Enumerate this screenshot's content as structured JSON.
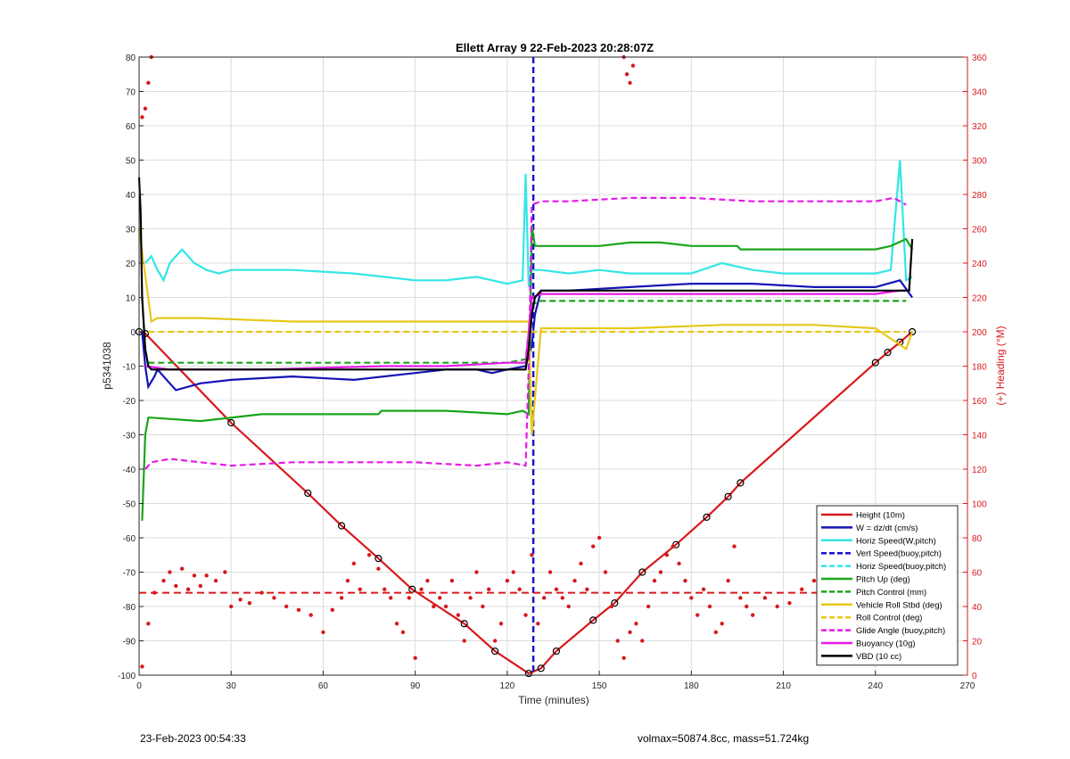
{
  "chart_data": {
    "type": "line",
    "title": "Ellett Array 9 22-Feb-2023 20:28:07Z",
    "xlabel": "Time (minutes)",
    "ylabel": "p5341038",
    "y2label": "(+) Heading (°M)",
    "xlim": [
      0,
      270
    ],
    "ylim": [
      -100,
      80
    ],
    "y2lim": [
      0,
      360
    ],
    "xticks": [
      0,
      30,
      60,
      90,
      120,
      150,
      180,
      210,
      240,
      270
    ],
    "yticks": [
      80,
      70,
      60,
      50,
      40,
      30,
      20,
      10,
      0,
      -10,
      -20,
      -30,
      -40,
      -50,
      -60,
      -70,
      -80,
      -90,
      -100
    ],
    "y2ticks": [
      360,
      340,
      320,
      300,
      280,
      260,
      240,
      220,
      200,
      180,
      160,
      140,
      120,
      100,
      80,
      60,
      40,
      20,
      0
    ],
    "grid": true,
    "legend_position": "bottom-right",
    "colors": {
      "height": "#d7191c",
      "w": "#1414b4",
      "horiz": "#33e6e6",
      "vert": "#1414cc",
      "pitch": "#1aa51a",
      "roll": "#e6c81a",
      "buoy": "#e61ae6",
      "vbd": "#000000",
      "heading": "#d7191c"
    },
    "legend": [
      {
        "label": "Height (10m)",
        "color": "#d7191c",
        "dash": false
      },
      {
        "label": "W = dz/dt (cm/s)",
        "color": "#1414b4",
        "dash": false
      },
      {
        "label": "Horiz Speed(W,pitch)",
        "color": "#33e6e6",
        "dash": false
      },
      {
        "label": "Vert Speed(buoy,pitch)",
        "color": "#1414cc",
        "dash": true
      },
      {
        "label": "Horiz Speed(buoy,pitch)",
        "color": "#33e6e6",
        "dash": true
      },
      {
        "label": "Pitch Up (deg)",
        "color": "#1aa51a",
        "dash": false
      },
      {
        "label": "Pitch Control (mm)",
        "color": "#1aa51a",
        "dash": true
      },
      {
        "label": "Vehicle Roll Stbd (deg)",
        "color": "#e6c81a",
        "dash": false
      },
      {
        "label": "Roll Control (deg)",
        "color": "#e6c81a",
        "dash": true
      },
      {
        "label": "Glide Angle (buoy,pitch)",
        "color": "#e61ae6",
        "dash": true
      },
      {
        "label": "Buoyancy (10g)",
        "color": "#e61ae6",
        "dash": false
      },
      {
        "label": "VBD (10 cc)",
        "color": "#000000",
        "dash": false
      }
    ],
    "series": [
      {
        "name": "Height (10m)",
        "x": [
          0,
          2,
          30,
          55,
          66,
          78,
          89,
          106,
          116,
          127,
          131,
          136,
          148,
          155,
          164,
          175,
          185,
          192,
          196,
          240,
          244,
          248,
          252
        ],
        "y": [
          0,
          -0.5,
          -26.5,
          -47,
          -56.5,
          -66,
          -75,
          -85,
          -93,
          -99.5,
          -98,
          -93,
          -84,
          -79,
          -70,
          -62,
          -54,
          -48,
          -44,
          -9,
          -6,
          -3,
          0
        ]
      },
      {
        "name": "W = dz/dt (cm/s)",
        "x": [
          1,
          2,
          3,
          5,
          6,
          10,
          12,
          20,
          30,
          50,
          70,
          90,
          100,
          110,
          115,
          120,
          126,
          128,
          129,
          131,
          140,
          160,
          180,
          200,
          220,
          240,
          248,
          252
        ],
        "y": [
          0,
          -10,
          -16,
          -13,
          -11,
          -15,
          -17,
          -15,
          -14,
          -13,
          -14,
          -12,
          -11,
          -11,
          -12,
          -11,
          -10,
          -4,
          5,
          12,
          12,
          13,
          14,
          14,
          13,
          13,
          15,
          10
        ]
      },
      {
        "name": "Horiz Speed(W,pitch)",
        "x": [
          2,
          4,
          6,
          8,
          10,
          14,
          18,
          22,
          26,
          30,
          50,
          70,
          90,
          100,
          110,
          120,
          125,
          126,
          127,
          128,
          131,
          140,
          150,
          160,
          170,
          180,
          190,
          200,
          210,
          220,
          230,
          240,
          245,
          248,
          250,
          252
        ],
        "y": [
          20,
          22,
          18,
          15,
          20,
          24,
          20,
          18,
          17,
          18,
          18,
          17,
          15,
          15,
          16,
          14,
          15,
          46,
          13,
          18,
          18,
          17,
          18,
          17,
          17,
          17,
          20,
          18,
          17,
          17,
          17,
          17,
          18,
          50,
          15,
          16
        ]
      },
      {
        "name": "Vert Speed(buoy,pitch)",
        "x": [
          128.5,
          128.5
        ],
        "y": [
          80,
          -100
        ]
      },
      {
        "name": "Pitch Up (deg)",
        "x": [
          1,
          2,
          3,
          4,
          20,
          40,
          60,
          70,
          78,
          79,
          100,
          120,
          125,
          127,
          128,
          129,
          131,
          140,
          150,
          160,
          170,
          180,
          195,
          196,
          210,
          230,
          240,
          245,
          250,
          252
        ],
        "y": [
          -55,
          -30,
          -25,
          -25,
          -26,
          -24,
          -24,
          -24,
          -24,
          -23,
          -23,
          -24,
          -23,
          -24,
          31,
          25,
          25,
          25,
          25,
          26,
          26,
          25,
          25,
          24,
          24,
          24,
          24,
          25,
          27,
          24
        ]
      },
      {
        "name": "Pitch Control (mm)",
        "x": [
          3,
          20,
          50,
          80,
          100,
          120,
          126,
          128,
          131,
          160,
          190,
          220,
          240,
          250
        ],
        "y": [
          -9,
          -9,
          -9,
          -9,
          -9,
          -9,
          -8,
          8,
          9,
          9,
          9,
          9,
          9,
          9
        ]
      },
      {
        "name": "Vehicle Roll Stbd (deg)",
        "x": [
          0,
          4,
          6,
          20,
          50,
          80,
          100,
          120,
          125,
          127,
          128,
          131,
          160,
          190,
          220,
          240,
          250,
          252
        ],
        "y": [
          30,
          3,
          4,
          4,
          3,
          3,
          3,
          3,
          3,
          3,
          -30,
          1,
          1,
          2,
          2,
          1,
          -5,
          0
        ]
      },
      {
        "name": "Roll Control (deg)",
        "x": [
          3,
          120,
          127,
          131,
          250
        ],
        "y": [
          0,
          0,
          0,
          0,
          0
        ]
      },
      {
        "name": "Glide Angle (buoy,pitch)",
        "x": [
          2,
          4,
          10,
          20,
          30,
          50,
          70,
          90,
          110,
          120,
          126,
          127,
          128,
          131,
          140,
          160,
          180,
          200,
          220,
          240,
          246,
          250
        ],
        "y": [
          -40,
          -38,
          -37,
          -38,
          -39,
          -38,
          -38,
          -38,
          -39,
          -38,
          -39,
          -10,
          37,
          38,
          38,
          39,
          39,
          38,
          38,
          38,
          39,
          37
        ]
      },
      {
        "name": "Buoyancy (10g)",
        "x": [
          2,
          10,
          40,
          80,
          100,
          120,
          126,
          127,
          128,
          131,
          160,
          200,
          240,
          248,
          250
        ],
        "y": [
          -10,
          -11,
          -11,
          -10,
          -10,
          -9,
          -9,
          0,
          10,
          11,
          11,
          11,
          11,
          12,
          12
        ]
      },
      {
        "name": "VBD (10 cc)",
        "x": [
          0,
          0.5,
          1,
          2,
          3,
          4,
          20,
          60,
          100,
          120,
          126,
          127,
          128,
          129,
          131,
          150,
          200,
          240,
          247,
          248,
          249,
          251,
          252
        ],
        "y": [
          45,
          35,
          10,
          -5,
          -10,
          -11,
          -11,
          -11,
          -11,
          -11,
          -11,
          -5,
          5,
          10,
          12,
          12,
          12,
          12,
          12,
          12,
          12,
          12,
          27
        ]
      }
    ],
    "heading_y2": {
      "x": [
        1,
        3,
        5,
        8,
        10,
        12,
        14,
        16,
        18,
        20,
        22,
        25,
        28,
        30,
        33,
        36,
        40,
        44,
        48,
        52,
        56,
        60,
        63,
        66,
        68,
        70,
        72,
        75,
        78,
        80,
        82,
        84,
        86,
        88,
        90,
        92,
        94,
        96,
        98,
        100,
        102,
        104,
        106,
        108,
        110,
        112,
        114,
        116,
        118,
        120,
        122,
        124,
        126,
        128,
        130,
        132,
        134,
        136,
        138,
        140,
        142,
        144,
        146,
        148,
        150,
        152,
        154,
        156,
        158,
        160,
        162,
        164,
        166,
        168,
        170,
        172,
        174,
        176,
        178,
        180,
        182,
        184,
        186,
        188,
        190,
        192,
        194,
        196,
        198,
        200,
        204,
        208,
        212,
        216,
        220,
        224,
        228,
        232,
        236,
        240,
        243,
        246,
        249
      ],
      "y": [
        5,
        30,
        48,
        55,
        60,
        52,
        62,
        50,
        58,
        52,
        58,
        55,
        60,
        40,
        44,
        42,
        48,
        45,
        40,
        38,
        35,
        25,
        38,
        45,
        55,
        65,
        50,
        70,
        62,
        50,
        45,
        30,
        25,
        45,
        10,
        50,
        55,
        40,
        45,
        40,
        55,
        35,
        20,
        45,
        60,
        40,
        50,
        20,
        30,
        55,
        60,
        50,
        35,
        70,
        30,
        45,
        60,
        50,
        45,
        40,
        55,
        65,
        50,
        75,
        80,
        60,
        40,
        20,
        10,
        25,
        30,
        20,
        40,
        55,
        60,
        70,
        75,
        65,
        55,
        45,
        35,
        50,
        40,
        25,
        30,
        55,
        75,
        45,
        40,
        35,
        45,
        40,
        42,
        50,
        55,
        48,
        45,
        55,
        40,
        35,
        30,
        45,
        50
      ],
      "mean": 48
    },
    "heading_top_x": [
      1,
      2,
      3,
      4,
      158,
      159,
      160,
      161
    ],
    "heading_top_y": [
      325,
      330,
      345,
      360,
      360,
      350,
      345,
      355
    ]
  },
  "footer": {
    "left": "23-Feb-2023 00:54:33",
    "right": "volmax=50874.8cc, mass=51.724kg"
  }
}
